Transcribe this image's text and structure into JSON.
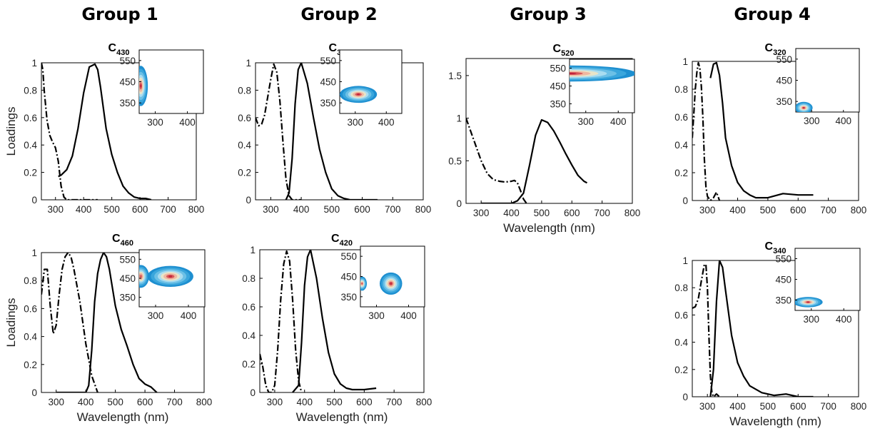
{
  "group_titles": [
    "Group 1",
    "Group 2",
    "Group 3",
    "Group 4"
  ],
  "colors": {
    "emission": "#000000",
    "excitation": "#000000",
    "contour_low": "#1e8fd0",
    "contour_mid": "#a9dcf0",
    "contour_high": "#c0203a"
  },
  "chart_data": [
    {
      "type": "line",
      "component": "C",
      "subscript": "430",
      "group": "Group 1",
      "xlabel": "",
      "ylabel": "Loadings",
      "xlim": [
        250,
        800
      ],
      "ylim": [
        0,
        1.0
      ],
      "xticks": [
        300,
        400,
        500,
        600,
        700,
        800
      ],
      "yticks": [
        0,
        0.2,
        0.4,
        0.6,
        0.8,
        1
      ],
      "series": [
        {
          "style": "dashdot",
          "x": [
            250,
            255,
            260,
            270,
            280,
            290,
            300,
            310,
            320,
            330,
            340,
            350,
            400,
            450
          ],
          "y": [
            1.0,
            0.95,
            0.8,
            0.58,
            0.47,
            0.42,
            0.38,
            0.28,
            0.1,
            0.02,
            0.0,
            0.0,
            0.0,
            0.0
          ]
        },
        {
          "style": "solid",
          "x": [
            310,
            320,
            340,
            360,
            380,
            400,
            420,
            440,
            450,
            460,
            480,
            500,
            520,
            540,
            560,
            580,
            600,
            620,
            640
          ],
          "y": [
            0.17,
            0.18,
            0.22,
            0.32,
            0.52,
            0.78,
            0.97,
            0.99,
            0.95,
            0.82,
            0.52,
            0.33,
            0.2,
            0.1,
            0.05,
            0.02,
            0.01,
            0.01,
            0.0
          ]
        }
      ],
      "inset": {
        "xticks": [
          300,
          400
        ],
        "yticks": [
          350,
          450,
          550
        ],
        "xlim": [
          250,
          450
        ],
        "ylim": [
          300,
          600
        ],
        "peaks": [
          {
            "ex": 255,
            "em": 430,
            "rx": 22,
            "ry": 95,
            "i": 1.0
          }
        ]
      }
    },
    {
      "type": "line",
      "component": "C",
      "subscript": "390",
      "group": "Group 2",
      "xlabel": "",
      "ylabel": "",
      "xlim": [
        250,
        800
      ],
      "ylim": [
        0,
        1.0
      ],
      "xticks": [
        300,
        400,
        500,
        600,
        700,
        800
      ],
      "yticks": [
        0,
        0.2,
        0.4,
        0.6,
        0.8,
        1
      ],
      "series": [
        {
          "style": "dashdot",
          "x": [
            250,
            260,
            270,
            280,
            290,
            300,
            310,
            320,
            330,
            340,
            350,
            360,
            370,
            380,
            400
          ],
          "y": [
            0.6,
            0.54,
            0.55,
            0.62,
            0.75,
            0.88,
            0.99,
            0.93,
            0.72,
            0.42,
            0.15,
            0.03,
            0.0,
            0.0,
            0.0
          ]
        },
        {
          "style": "solid",
          "x": [
            350,
            360,
            370,
            380,
            390,
            400,
            420,
            440,
            460,
            480,
            500,
            520,
            540,
            560,
            600,
            650
          ],
          "y": [
            0.0,
            0.05,
            0.3,
            0.7,
            0.95,
            1.0,
            0.85,
            0.6,
            0.37,
            0.2,
            0.08,
            0.03,
            0.01,
            0.0,
            0.0,
            0.0
          ]
        }
      ],
      "inset": {
        "xticks": [
          300,
          400
        ],
        "yticks": [
          350,
          450,
          550
        ],
        "xlim": [
          250,
          450
        ],
        "ylim": [
          300,
          600
        ],
        "peaks": [
          {
            "ex": 310,
            "em": 390,
            "rx": 60,
            "ry": 40,
            "i": 1.0
          }
        ]
      }
    },
    {
      "type": "line",
      "component": "C",
      "subscript": "520",
      "group": "Group 3",
      "xlabel": "Wavelength (nm)",
      "ylabel": "",
      "xlim": [
        250,
        800
      ],
      "ylim": [
        0,
        1.7
      ],
      "xticks": [
        300,
        400,
        500,
        600,
        700,
        800
      ],
      "yticks": [
        0,
        0.5,
        1,
        1.5
      ],
      "series": [
        {
          "style": "dashdot",
          "x": [
            250,
            260,
            280,
            300,
            320,
            340,
            360,
            380,
            400,
            410,
            420,
            430,
            440,
            450
          ],
          "y": [
            1.0,
            0.9,
            0.7,
            0.5,
            0.35,
            0.28,
            0.26,
            0.25,
            0.26,
            0.27,
            0.24,
            0.15,
            0.05,
            0.0
          ]
        },
        {
          "style": "solid",
          "x": [
            300,
            350,
            400,
            420,
            440,
            460,
            480,
            500,
            520,
            540,
            560,
            580,
            600,
            620,
            640,
            650
          ],
          "y": [
            0.0,
            0.0,
            0.0,
            0.03,
            0.12,
            0.45,
            0.8,
            0.98,
            0.95,
            0.85,
            0.72,
            0.58,
            0.45,
            0.33,
            0.26,
            0.24
          ]
        }
      ],
      "inset": {
        "xticks": [
          300,
          400
        ],
        "yticks": [
          350,
          450,
          550
        ],
        "xlim": [
          250,
          450
        ],
        "ylim": [
          300,
          600
        ],
        "peaks": [
          {
            "ex": 255,
            "em": 520,
            "rx": 200,
            "ry": 45,
            "i": 1.0
          }
        ]
      }
    },
    {
      "type": "line",
      "component": "C",
      "subscript": "320",
      "group": "Group 4",
      "xlabel": "",
      "ylabel": "",
      "xlim": [
        250,
        800
      ],
      "ylim": [
        0,
        1.0
      ],
      "xticks": [
        300,
        400,
        500,
        600,
        700,
        800
      ],
      "yticks": [
        0,
        0.2,
        0.4,
        0.6,
        0.8,
        1
      ],
      "series": [
        {
          "style": "dashdot",
          "x": [
            250,
            255,
            260,
            265,
            270,
            275,
            280,
            285,
            290,
            295,
            300,
            310,
            320,
            330,
            340
          ],
          "y": [
            0.45,
            0.62,
            0.8,
            0.92,
            0.99,
            0.95,
            0.82,
            0.6,
            0.3,
            0.1,
            0.03,
            0.0,
            0.02,
            0.06,
            0.0
          ]
        },
        {
          "style": "solid",
          "x": [
            310,
            320,
            330,
            340,
            350,
            360,
            380,
            400,
            420,
            440,
            460,
            500,
            550,
            600,
            650
          ],
          "y": [
            0.88,
            0.98,
            0.99,
            0.9,
            0.7,
            0.45,
            0.25,
            0.13,
            0.07,
            0.04,
            0.02,
            0.02,
            0.05,
            0.04,
            0.04
          ]
        }
      ],
      "inset": {
        "xticks": [
          300,
          400
        ],
        "yticks": [
          350,
          450,
          550
        ],
        "xlim": [
          250,
          450
        ],
        "ylim": [
          300,
          600
        ],
        "peaks": [
          {
            "ex": 275,
            "em": 320,
            "rx": 28,
            "ry": 28,
            "i": 1.0
          }
        ]
      }
    },
    {
      "type": "line",
      "component": "C",
      "subscript": "460",
      "group": "Group 1",
      "xlabel": "Wavelength (nm)",
      "ylabel": "Loadings",
      "xlim": [
        250,
        800
      ],
      "ylim": [
        0,
        1.0
      ],
      "xticks": [
        300,
        400,
        500,
        600,
        700,
        800
      ],
      "yticks": [
        0,
        0.2,
        0.4,
        0.6,
        0.8,
        1
      ],
      "series": [
        {
          "style": "dashdot",
          "x": [
            250,
            260,
            270,
            280,
            290,
            300,
            310,
            320,
            330,
            340,
            350,
            360,
            380,
            400,
            420,
            440
          ],
          "y": [
            0.7,
            0.88,
            0.88,
            0.62,
            0.42,
            0.48,
            0.7,
            0.88,
            0.97,
            1.0,
            0.97,
            0.88,
            0.65,
            0.35,
            0.12,
            0.0
          ]
        },
        {
          "style": "solid",
          "x": [
            300,
            400,
            410,
            420,
            430,
            440,
            450,
            460,
            470,
            480,
            500,
            520,
            540,
            560,
            580,
            600,
            620,
            640
          ],
          "y": [
            0.0,
            0.0,
            0.05,
            0.3,
            0.65,
            0.85,
            0.95,
            1.0,
            0.97,
            0.88,
            0.62,
            0.45,
            0.33,
            0.2,
            0.1,
            0.06,
            0.04,
            0.0
          ]
        }
      ],
      "inset": {
        "xticks": [
          300,
          400
        ],
        "yticks": [
          350,
          450,
          550
        ],
        "xlim": [
          250,
          450
        ],
        "ylim": [
          300,
          600
        ],
        "peaks": [
          {
            "ex": 255,
            "em": 460,
            "rx": 25,
            "ry": 60,
            "i": 0.9
          },
          {
            "ex": 345,
            "em": 460,
            "rx": 70,
            "ry": 55,
            "i": 1.0
          }
        ]
      }
    },
    {
      "type": "line",
      "component": "C",
      "subscript": "420",
      "group": "Group 2",
      "xlabel": "Wavelength (nm)",
      "ylabel": "",
      "xlim": [
        250,
        800
      ],
      "ylim": [
        0,
        1.0
      ],
      "xticks": [
        300,
        400,
        500,
        600,
        700,
        800
      ],
      "yticks": [
        0,
        0.2,
        0.4,
        0.6,
        0.8,
        1
      ],
      "series": [
        {
          "style": "dashdot",
          "x": [
            250,
            260,
            270,
            280,
            290,
            300,
            310,
            320,
            330,
            340,
            350,
            360,
            370,
            380,
            390
          ],
          "y": [
            0.27,
            0.18,
            0.05,
            0.0,
            0.0,
            0.05,
            0.3,
            0.65,
            0.9,
            0.99,
            0.92,
            0.65,
            0.3,
            0.08,
            0.0
          ]
        },
        {
          "style": "solid",
          "x": [
            360,
            380,
            390,
            400,
            410,
            420,
            440,
            460,
            480,
            500,
            520,
            540,
            560,
            600,
            640
          ],
          "y": [
            0.0,
            0.05,
            0.35,
            0.75,
            0.95,
            1.0,
            0.8,
            0.52,
            0.28,
            0.13,
            0.06,
            0.03,
            0.02,
            0.02,
            0.03
          ]
        }
      ],
      "inset": {
        "xticks": [
          300,
          400
        ],
        "yticks": [
          350,
          450,
          550
        ],
        "xlim": [
          250,
          450
        ],
        "ylim": [
          300,
          600
        ],
        "peaks": [
          {
            "ex": 255,
            "em": 415,
            "rx": 15,
            "ry": 35,
            "i": 0.55
          },
          {
            "ex": 345,
            "em": 415,
            "rx": 35,
            "ry": 55,
            "i": 1.0
          }
        ]
      }
    },
    {
      "type": "line",
      "component": "C",
      "subscript": "340",
      "group": "Group 4",
      "xlabel": "Wavelength (nm)",
      "ylabel": "",
      "xlim": [
        250,
        800
      ],
      "ylim": [
        0,
        1.0
      ],
      "xticks": [
        300,
        400,
        500,
        600,
        700,
        800
      ],
      "yticks": [
        0,
        0.2,
        0.4,
        0.6,
        0.8,
        1
      ],
      "series": [
        {
          "style": "dashdot",
          "x": [
            250,
            260,
            270,
            280,
            290,
            295,
            300,
            305,
            310,
            315,
            320,
            330,
            340
          ],
          "y": [
            0.65,
            0.66,
            0.72,
            0.85,
            0.97,
            0.97,
            0.8,
            0.45,
            0.15,
            0.03,
            0.0,
            0.02,
            0.0
          ]
        },
        {
          "style": "solid",
          "x": [
            310,
            320,
            330,
            340,
            350,
            360,
            380,
            400,
            420,
            440,
            480,
            520,
            560,
            600,
            650
          ],
          "y": [
            0.0,
            0.2,
            0.7,
            1.0,
            0.95,
            0.78,
            0.45,
            0.25,
            0.15,
            0.08,
            0.03,
            0.01,
            0.02,
            0.0,
            0.0
          ]
        }
      ],
      "inset": {
        "xticks": [
          300,
          400
        ],
        "yticks": [
          350,
          450,
          550
        ],
        "xlim": [
          250,
          450
        ],
        "ylim": [
          300,
          600
        ],
        "peaks": [
          {
            "ex": 290,
            "em": 340,
            "rx": 45,
            "ry": 25,
            "i": 1.0
          }
        ]
      }
    }
  ]
}
